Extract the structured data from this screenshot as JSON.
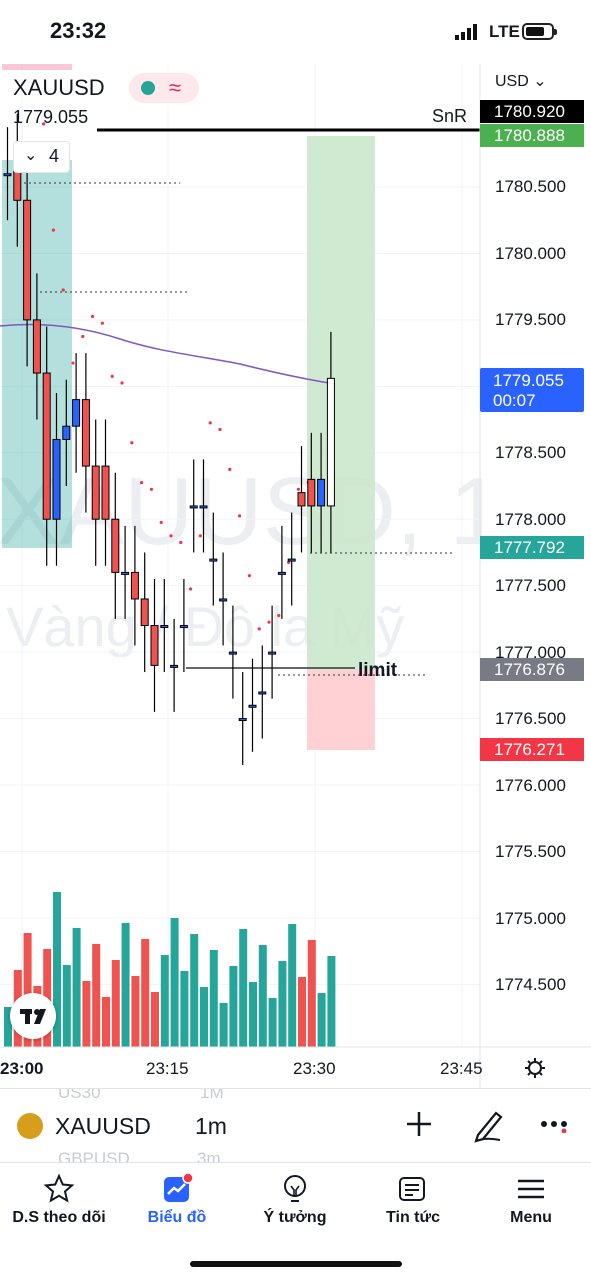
{
  "status_bar": {
    "time": "23:32",
    "network": "LTE"
  },
  "chart": {
    "symbol": "XAUUSD",
    "last_price": "1779.055",
    "currency": "USD",
    "indicators_count": "4",
    "snr_label": "SnR",
    "limit_label": "limit",
    "watermark_symbol": "XAUUSD, 1",
    "watermark_name": "Vàng / Đô la Mỹ",
    "price_axis": [
      "1780.500",
      "1780.000",
      "1779.500",
      "1778.500",
      "1778.000",
      "1777.500",
      "1777.000",
      "1776.500",
      "1776.000",
      "1775.500",
      "1775.000",
      "1774.500"
    ],
    "tags": {
      "snr": "1780.920",
      "target": "1780.888",
      "live_price": "1779.055",
      "countdown": "00:07",
      "entry": "1777.792",
      "limit": "1776.876",
      "stop": "1776.271"
    },
    "time_axis": [
      "23:00",
      "23:15",
      "23:30",
      "23:45"
    ],
    "colors": {
      "up": "#2962ff",
      "down": "#ef5350",
      "vol_up": "#26a69a",
      "vol_down": "#ef5350",
      "profit_zone": "#c8e6c9",
      "loss_zone": "#ffcdd2",
      "ma": "#7e57c2"
    }
  },
  "chart_data": {
    "type": "candlestick",
    "symbol": "XAUUSD",
    "interval": "1m",
    "x": [
      "22:59",
      "23:00",
      "23:01",
      "23:02",
      "23:03",
      "23:04",
      "23:05",
      "23:06",
      "23:07",
      "23:08",
      "23:09",
      "23:10",
      "23:11",
      "23:12",
      "23:13",
      "23:14",
      "23:15",
      "23:16",
      "23:17",
      "23:18",
      "23:19",
      "23:20",
      "23:21",
      "23:22",
      "23:23",
      "23:24",
      "23:25",
      "23:26",
      "23:27",
      "23:28",
      "23:29",
      "23:30",
      "23:31",
      "23:32"
    ],
    "open": [
      1780.6,
      1780.7,
      1780.4,
      1779.5,
      1779.1,
      1778.0,
      1778.6,
      1778.7,
      1778.9,
      1778.4,
      1778.4,
      1778.0,
      1777.6,
      1777.6,
      1777.4,
      1777.2,
      1777.2,
      1776.9,
      1777.2,
      1778.1,
      1778.1,
      1777.7,
      1777.4,
      1777.0,
      1776.5,
      1776.6,
      1776.7,
      1777.0,
      1777.6,
      1777.7,
      1778.2,
      1778.3,
      1778.1,
      1778.1
    ],
    "close": [
      1780.6,
      1780.4,
      1779.5,
      1779.1,
      1778.0,
      1778.6,
      1778.7,
      1778.9,
      1778.4,
      1778.0,
      1778.0,
      1777.6,
      1777.6,
      1777.4,
      1777.2,
      1776.9,
      1777.2,
      1776.9,
      1777.2,
      1778.1,
      1778.1,
      1777.7,
      1777.4,
      1777.0,
      1776.5,
      1776.6,
      1776.7,
      1777.0,
      1777.6,
      1777.7,
      1778.1,
      1778.1,
      1778.3,
      1779.06
    ],
    "volume_bars": 34,
    "ylim": [
      1774.2,
      1781.2
    ],
    "levels": {
      "SnR": 1780.92,
      "target": 1780.888,
      "entry": 1777.792,
      "limit": 1776.876,
      "stop": 1776.271
    }
  },
  "symbol_bar": {
    "ghost_top": "US30",
    "ghost_top_interval": "1M",
    "symbol": "XAUUSD",
    "interval": "1m",
    "ghost_bottom": "GBPUSD",
    "ghost_bottom_interval": "3m"
  },
  "tabs": [
    {
      "label": "D.S theo dõi",
      "icon": "star-icon"
    },
    {
      "label": "Biểu đồ",
      "icon": "chart-icon"
    },
    {
      "label": "Ý tưởng",
      "icon": "idea-icon"
    },
    {
      "label": "Tin tức",
      "icon": "news-icon"
    },
    {
      "label": "Menu",
      "icon": "menu-icon"
    }
  ]
}
